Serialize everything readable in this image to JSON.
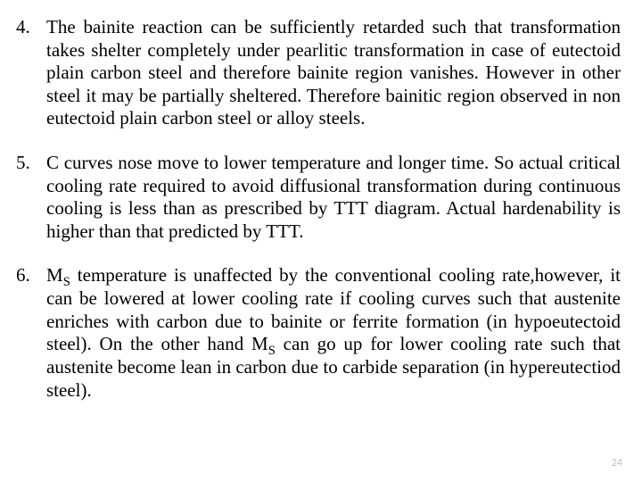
{
  "items": [
    {
      "number": "4.",
      "text": "The bainite reaction can be sufficiently retarded such that transformation takes shelter completely under pearlitic transformation in case of eutectoid plain carbon steel and therefore bainite region vanishes. However  in other steel it may be partially sheltered. Therefore bainitic region observed in non eutectoid plain carbon steel or alloy steels."
    },
    {
      "number": "5.",
      "text": "C curves nose move to lower temperature and longer time.  So actual critical cooling rate required to avoid diffusional transformation during continuous cooling is less than as prescribed by TTT diagram. Actual hardenability is higher than that predicted by TTT."
    },
    {
      "number": "6.",
      "text_html": "M<span class=\"sub\">S</span> temperature is unaffected by the conventional cooling rate,however, it can be lowered at lower cooling rate if cooling curves such that austenite enriches with carbon due to bainite or ferrite formation (in hypoeutectoid steel). On the other hand M<span class=\"sub\">S</span> can go up for lower cooling rate such that austenite become lean in carbon due to carbide separation (in hypereutectiod steel)."
    }
  ],
  "page_number": "24"
}
